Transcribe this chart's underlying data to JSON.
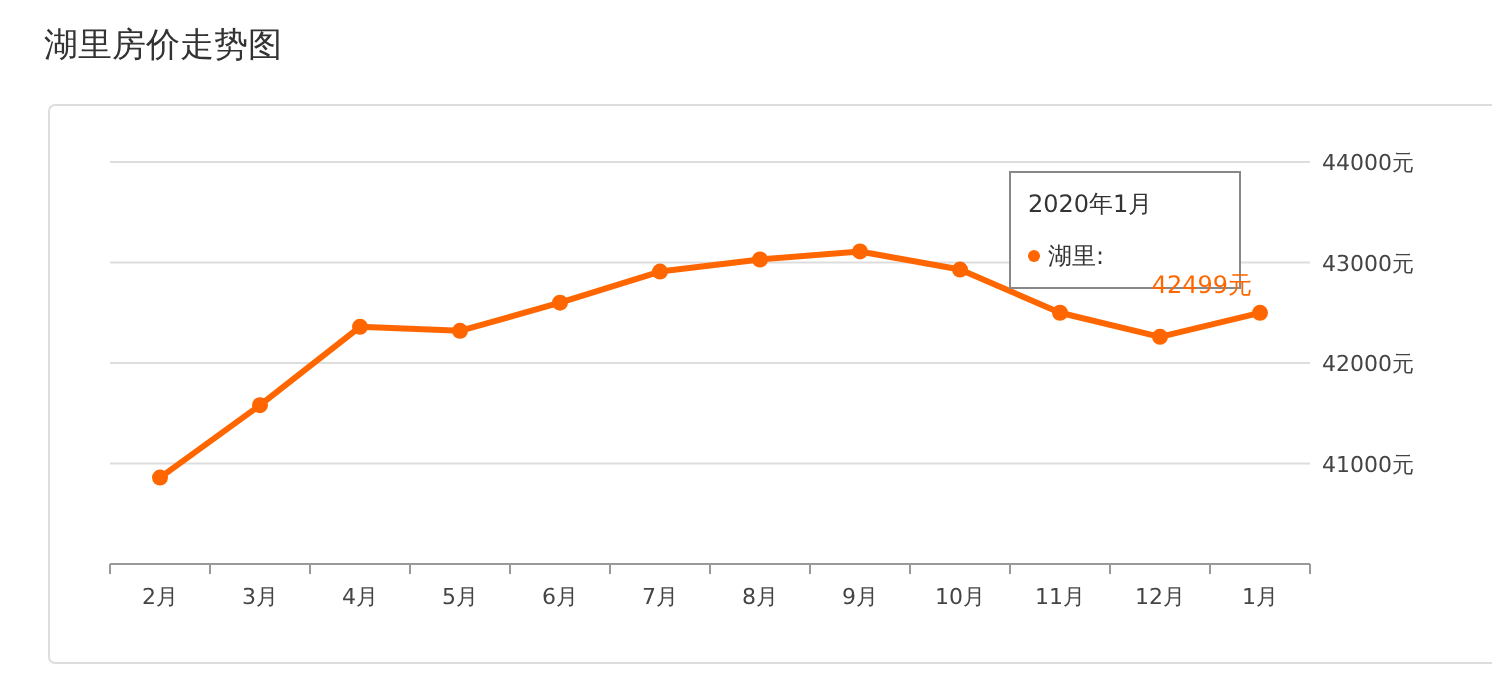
{
  "chart_data": {
    "type": "line",
    "title": "湖里房价走势图",
    "categories": [
      "2月",
      "3月",
      "4月",
      "5月",
      "6月",
      "7月",
      "8月",
      "9月",
      "10月",
      "11月",
      "12月",
      "1月"
    ],
    "series": [
      {
        "name": "湖里:",
        "color": "#ff6600",
        "values": [
          40860,
          41580,
          42360,
          42320,
          42600,
          42910,
          43030,
          43110,
          42930,
          42500,
          42260,
          42499
        ],
        "value_labels": [
          null,
          null,
          null,
          null,
          null,
          null,
          null,
          null,
          null,
          null,
          null,
          "42499元"
        ]
      }
    ],
    "annotations": [
      "2020年1月"
    ],
    "ylim": [
      40000,
      44000
    ],
    "yticks": [
      {
        "value": 41000,
        "label": "41000元"
      },
      {
        "value": 42000,
        "label": "42000元"
      },
      {
        "value": 43000,
        "label": "43000元"
      },
      {
        "value": 44000,
        "label": "44000元"
      }
    ],
    "grid": "y",
    "marker": "circle",
    "line_style": "solid",
    "legend": "top right"
  }
}
